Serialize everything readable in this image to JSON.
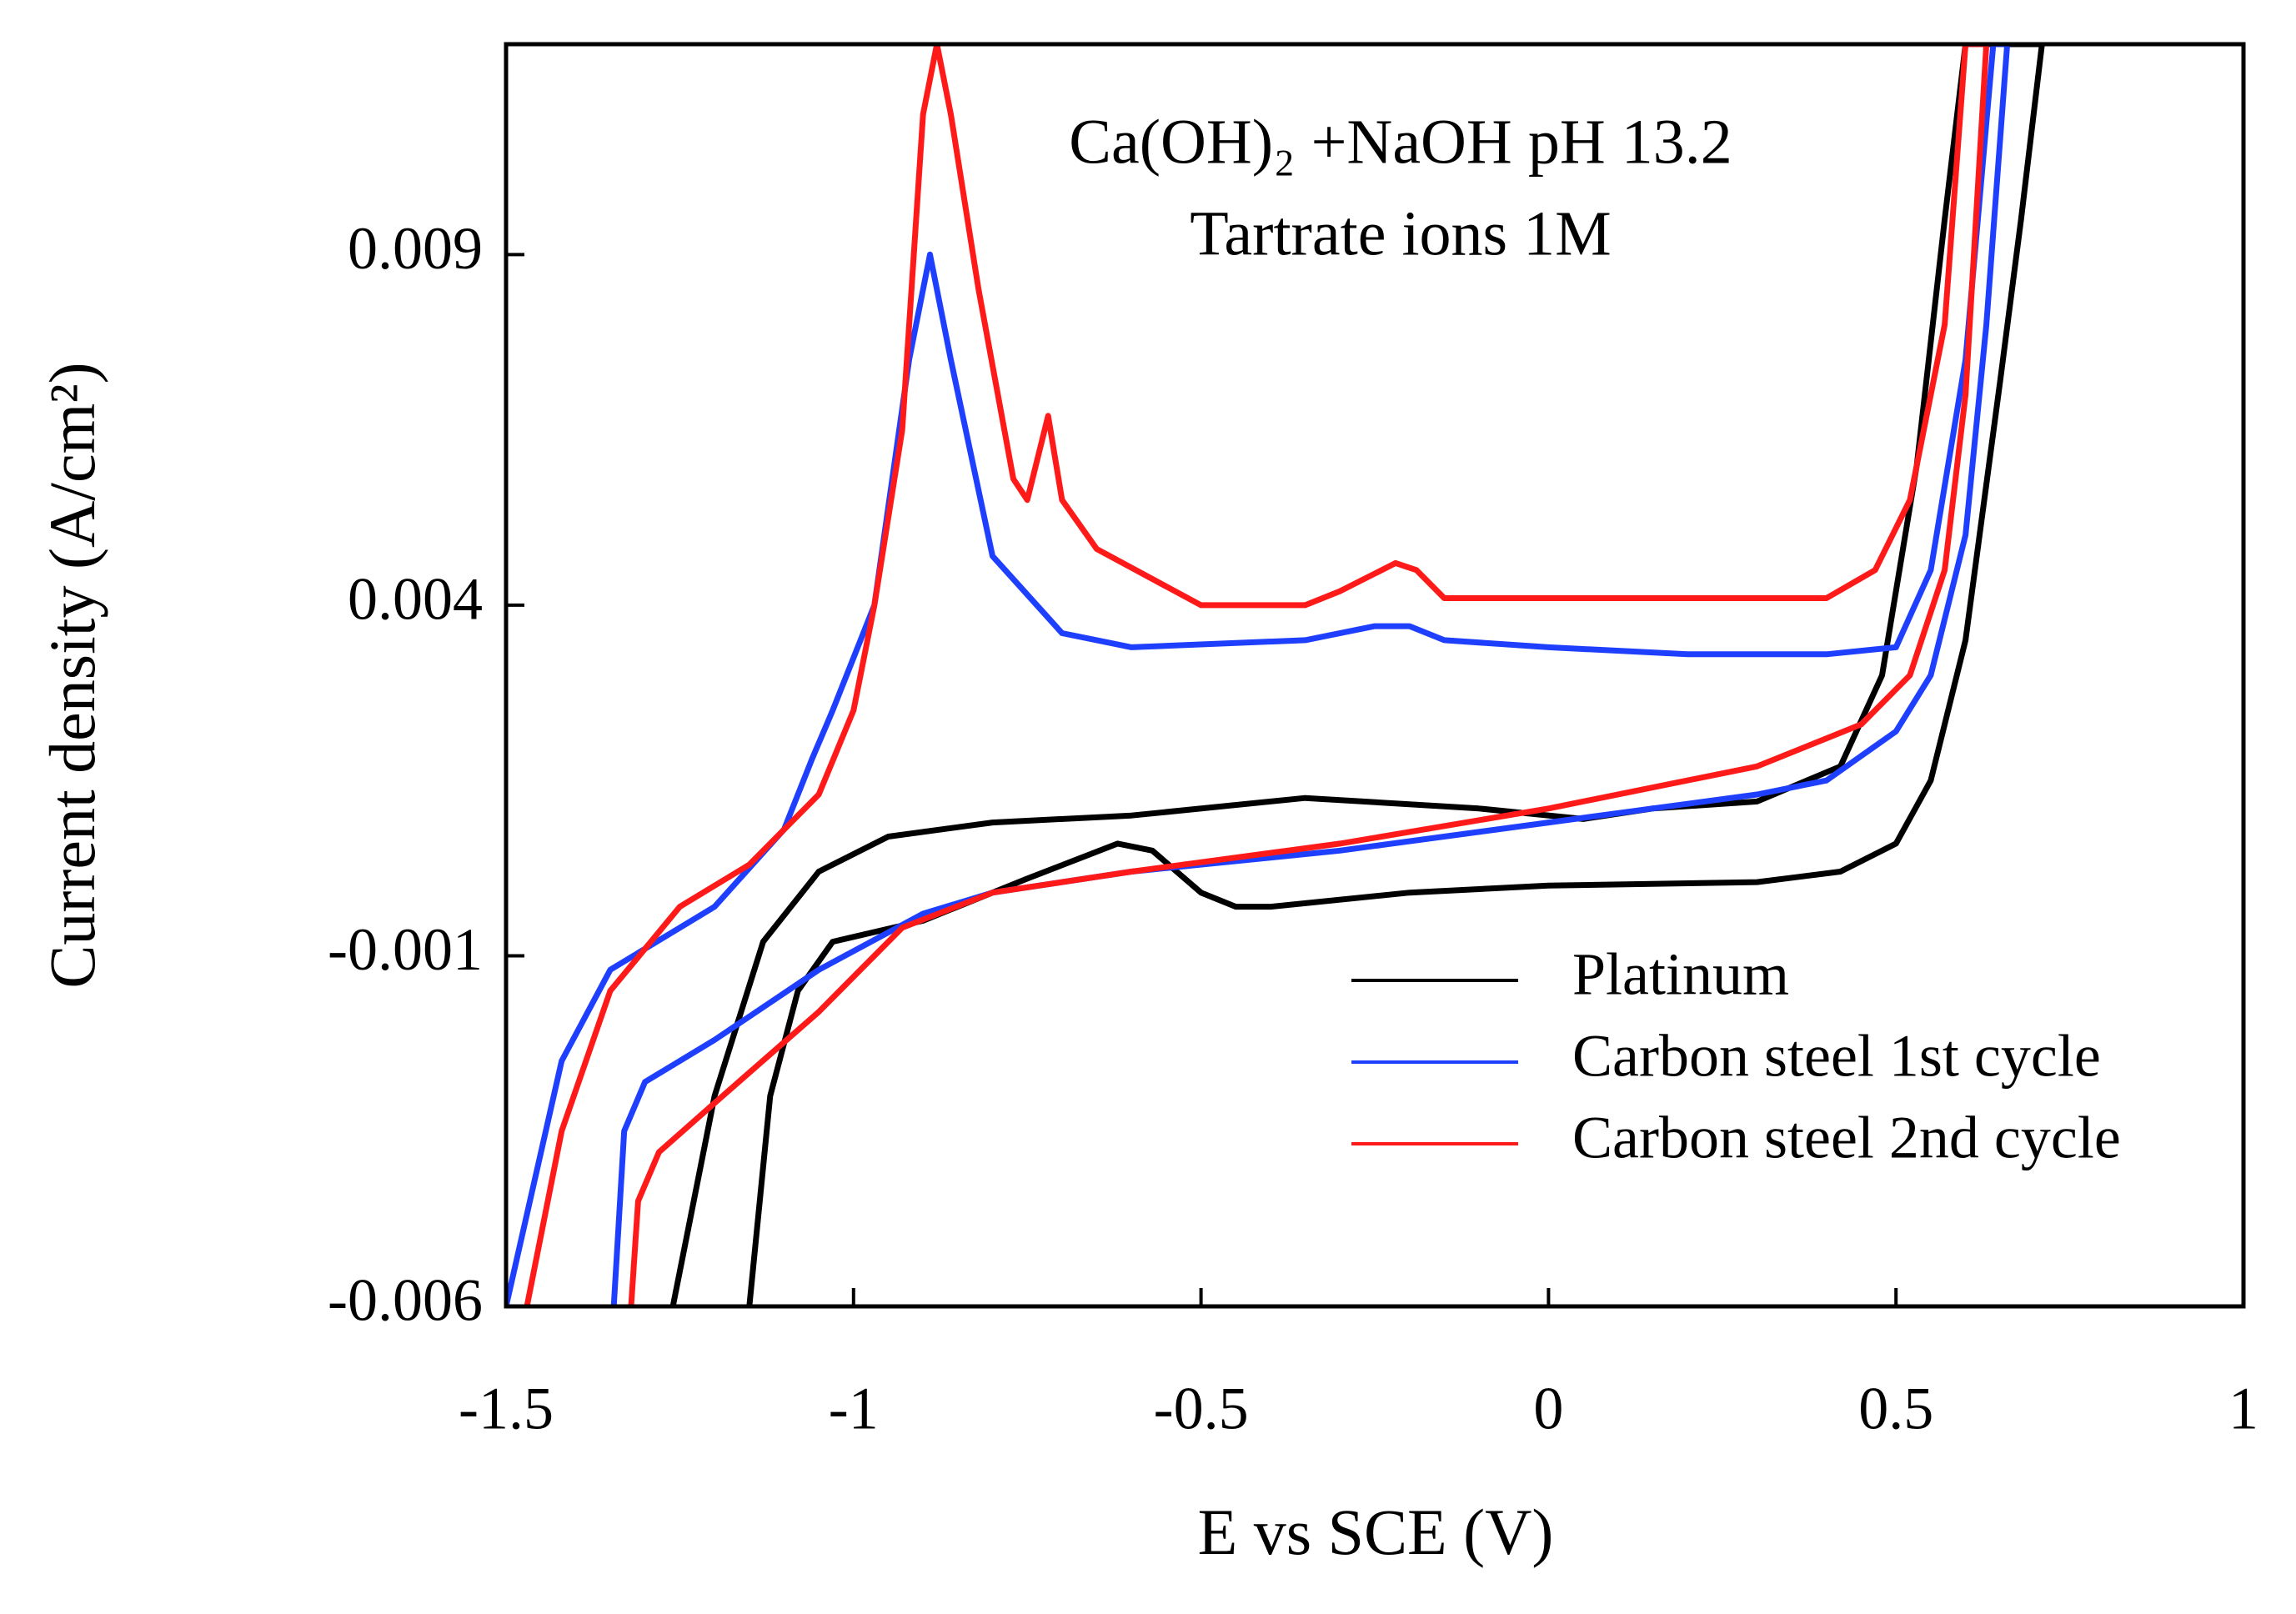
{
  "chart_data": {
    "type": "line",
    "annotations": [
      "Ca(OH)₂ +NaOH pH 13.2",
      "Tartrate ions 1M"
    ],
    "xlabel": "E vs SCE (V)",
    "ylabel": "Current density (A/cm²)",
    "xlim": [
      -1.5,
      1
    ],
    "xticks": [
      -1.5,
      -1,
      -0.5,
      0,
      0.5,
      1
    ],
    "ylim": [
      -0.006,
      0.012
    ],
    "yticks": [
      -0.006,
      -0.001,
      0.004,
      0.009
    ],
    "legend": "lower right",
    "grid": false,
    "series": [
      {
        "name": "Platinum",
        "color": "#000000",
        "x": [
          -1.15,
          -1.12,
          -1.08,
          -1.03,
          -0.9,
          -0.75,
          -0.62,
          -0.57,
          -0.5,
          -0.45,
          -0.4,
          -0.2,
          0,
          0.3,
          0.42,
          0.5,
          0.55,
          0.6,
          0.65,
          0.68,
          0.71,
          0.6,
          0.57,
          0.53,
          0.48,
          0.42,
          0.3,
          0.15,
          0.05,
          -0.1,
          -0.35,
          -0.6,
          -0.8,
          -0.95,
          -1.05,
          -1.13,
          -1.2,
          -1.26
        ],
        "values": [
          -0.006,
          -0.003,
          -0.0015,
          -0.0008,
          -0.0005,
          0.0001,
          0.0006,
          0.0005,
          -0.0001,
          -0.0003,
          -0.0003,
          -0.0001,
          0,
          5e-05,
          0.0002,
          0.0006,
          0.0015,
          0.0035,
          0.0072,
          0.0095,
          0.012,
          0.012,
          0.0095,
          0.006,
          0.003,
          0.0017,
          0.0012,
          0.0011,
          0.00095,
          0.0011,
          0.00125,
          0.001,
          0.0009,
          0.0007,
          0.0002,
          -0.0008,
          -0.003,
          -0.006
        ]
      },
      {
        "name": "Carbon steel 1st cycle",
        "color": "#1f3fff",
        "x": [
          -1.345,
          -1.33,
          -1.3,
          -1.2,
          -1.05,
          -0.9,
          -0.8,
          -0.6,
          -0.3,
          0,
          0.3,
          0.4,
          0.5,
          0.55,
          0.6,
          0.63,
          0.66,
          0.64,
          0.6,
          0.55,
          0.5,
          0.4,
          0.2,
          0,
          -0.15,
          -0.2,
          -0.25,
          -0.35,
          -0.6,
          -0.7,
          -0.8,
          -0.86,
          -0.89,
          -0.92,
          -0.97,
          -1.03,
          -1.06,
          -1.1,
          -1.2,
          -1.35,
          -1.42,
          -1.5
        ],
        "values": [
          -0.006,
          -0.0035,
          -0.0028,
          -0.0022,
          -0.0012,
          -0.0004,
          -0.0001,
          0.0002,
          0.0005,
          0.0009,
          0.0013,
          0.0015,
          0.0022,
          0.003,
          0.005,
          0.008,
          0.012,
          0.012,
          0.0075,
          0.0045,
          0.0034,
          0.0033,
          0.0033,
          0.0034,
          0.0035,
          0.0037,
          0.0037,
          0.0035,
          0.0034,
          0.0036,
          0.0047,
          0.0075,
          0.009,
          0.0075,
          0.004,
          0.0025,
          0.0018,
          0.0008,
          -0.0003,
          -0.0012,
          -0.0025,
          -0.006
        ]
      },
      {
        "name": "Carbon steel 2nd cycle",
        "color": "#ff1a1a",
        "x": [
          -1.32,
          -1.31,
          -1.28,
          -1.2,
          -1.05,
          -0.93,
          -0.8,
          -0.6,
          -0.3,
          0,
          0.3,
          0.45,
          0.52,
          0.57,
          0.6,
          0.63,
          0.6,
          0.57,
          0.52,
          0.47,
          0.4,
          0.1,
          -0.15,
          -0.19,
          -0.22,
          -0.3,
          -0.35,
          -0.5,
          -0.65,
          -0.7,
          -0.72,
          -0.75,
          -0.77,
          -0.82,
          -0.86,
          -0.88,
          -0.9,
          -0.93,
          -0.97,
          -1.0,
          -1.05,
          -1.15,
          -1.25,
          -1.35,
          -1.42,
          -1.47
        ],
        "values": [
          -0.006,
          -0.0045,
          -0.0038,
          -0.0031,
          -0.0018,
          -0.0006,
          -0.0001,
          0.0002,
          0.0006,
          0.0011,
          0.0017,
          0.0023,
          0.003,
          0.0045,
          0.007,
          0.012,
          0.012,
          0.008,
          0.0055,
          0.0045,
          0.0041,
          0.0041,
          0.0041,
          0.0045,
          0.0046,
          0.0042,
          0.004,
          0.004,
          0.0048,
          0.0055,
          0.0067,
          0.0055,
          0.0058,
          0.0085,
          0.011,
          0.012,
          0.011,
          0.0065,
          0.004,
          0.0025,
          0.0013,
          0.0003,
          -0.0003,
          -0.0015,
          -0.0035,
          -0.006
        ]
      }
    ]
  }
}
